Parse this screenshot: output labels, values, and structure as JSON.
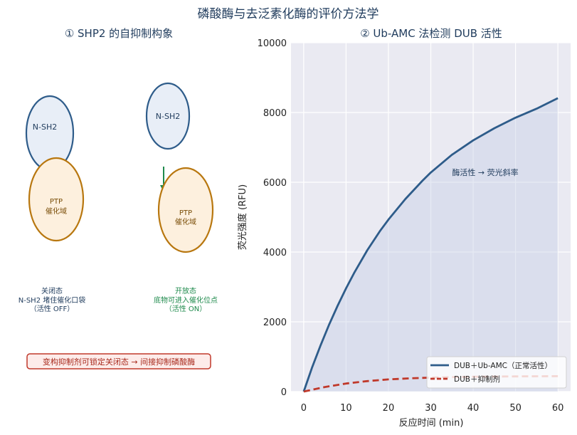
{
  "figure": {
    "title": "磷酸酶与去泛素化酶的评价方法学"
  },
  "panel_left": {
    "title": "① SHP2 的自抑制构象",
    "closed": {
      "nsh2_label": "N-SH2",
      "ptp_line1": "PTP",
      "ptp_line2": "催化域",
      "caption_line1": "关闭态",
      "caption_line2": "N-SH2 堵住催化口袋",
      "caption_line3": "（活性 OFF）"
    },
    "open": {
      "nsh2_label": "N-SH2",
      "ptp_line1": "PTP",
      "ptp_line2": "催化域",
      "caption_line1": "开放态",
      "caption_line2": "底物可进入催化位点",
      "caption_line3": "（活性 ON）"
    },
    "note": "变构抑制剂可锁定关闭态 → 间接抑制磷酸酶",
    "colors": {
      "nsh2_fill": "#e8eef7",
      "nsh2_stroke": "#2e5c8a",
      "ptp_fill": "#fdf0de",
      "ptp_stroke": "#b8770f",
      "arrow": "#1e8a4c",
      "note_stroke": "#c0392b"
    }
  },
  "chart_data": {
    "type": "line",
    "title": "② Ub-AMC 法检测 DUB 活性",
    "xlabel": "反应时间 (min)",
    "ylabel": "荧光强度 (RFU)",
    "xlim": [
      -3,
      63
    ],
    "ylim": [
      0,
      10000
    ],
    "xticks": [
      0,
      10,
      20,
      30,
      40,
      50,
      60
    ],
    "yticks": [
      0,
      2000,
      4000,
      6000,
      8000,
      10000
    ],
    "grid": true,
    "legend": "bottom-right",
    "annotation": "酶活性 → 荧光斜率",
    "series": [
      {
        "name": "DUB＋Ub-AMC（正常活性）",
        "color": "#2e5c8a",
        "style": "solid",
        "x": [
          0,
          2,
          4,
          6,
          8,
          10,
          12,
          15,
          18,
          20,
          24,
          28,
          30,
          35,
          40,
          45,
          50,
          55,
          60
        ],
        "y": [
          0,
          700,
          1330,
          1920,
          2460,
          2960,
          3420,
          4050,
          4600,
          4930,
          5520,
          6040,
          6280,
          6790,
          7200,
          7550,
          7850,
          8110,
          8410
        ]
      },
      {
        "name": "DUB＋抑制剂",
        "color": "#c0392b",
        "style": "dashed",
        "x": [
          0,
          5,
          10,
          15,
          20,
          25,
          30,
          35,
          40,
          45,
          50,
          55,
          60
        ],
        "y": [
          0,
          130,
          230,
          300,
          350,
          380,
          400,
          415,
          425,
          430,
          435,
          438,
          440
        ]
      }
    ]
  }
}
